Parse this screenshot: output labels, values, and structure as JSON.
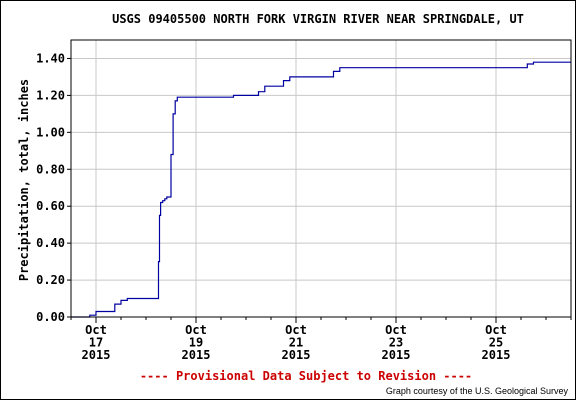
{
  "chart_data": {
    "type": "line",
    "title": "USGS 09405500 NORTH FORK VIRGIN RIVER NEAR SPRINGDALE, UT",
    "ylabel": "Precipitation, total, inches",
    "xlabel": "",
    "ylim": [
      0.0,
      1.5
    ],
    "xlim": [
      "2015-10-16 12:00",
      "2015-10-26 12:00"
    ],
    "yticks": [
      "0.00",
      "0.20",
      "0.40",
      "0.60",
      "0.80",
      "1.00",
      "1.20",
      "1.40"
    ],
    "xticks": [
      {
        "month": "Oct",
        "day": "17",
        "year": "2015",
        "date": "2015-10-17"
      },
      {
        "month": "Oct",
        "day": "19",
        "year": "2015",
        "date": "2015-10-19"
      },
      {
        "month": "Oct",
        "day": "21",
        "year": "2015",
        "date": "2015-10-21"
      },
      {
        "month": "Oct",
        "day": "23",
        "year": "2015",
        "date": "2015-10-23"
      },
      {
        "month": "Oct",
        "day": "25",
        "year": "2015",
        "date": "2015-10-25"
      }
    ],
    "grid": true,
    "series": [
      {
        "color": "#0000a0",
        "step": true,
        "points": [
          [
            "2015-10-16 12:00",
            0.0
          ],
          [
            "2015-10-16 21:00",
            0.01
          ],
          [
            "2015-10-17 00:00",
            0.03
          ],
          [
            "2015-10-17 09:00",
            0.07
          ],
          [
            "2015-10-17 12:00",
            0.09
          ],
          [
            "2015-10-17 15:00",
            0.1
          ],
          [
            "2015-10-18 06:00",
            0.3
          ],
          [
            "2015-10-18 06:30",
            0.55
          ],
          [
            "2015-10-18 07:00",
            0.62
          ],
          [
            "2015-10-18 08:00",
            0.63
          ],
          [
            "2015-10-18 09:00",
            0.64
          ],
          [
            "2015-10-18 10:00",
            0.65
          ],
          [
            "2015-10-18 12:00",
            0.88
          ],
          [
            "2015-10-18 13:00",
            1.1
          ],
          [
            "2015-10-18 14:00",
            1.17
          ],
          [
            "2015-10-18 15:00",
            1.19
          ],
          [
            "2015-10-19 18:00",
            1.2
          ],
          [
            "2015-10-20 06:00",
            1.22
          ],
          [
            "2015-10-20 09:00",
            1.25
          ],
          [
            "2015-10-20 18:00",
            1.28
          ],
          [
            "2015-10-20 21:00",
            1.3
          ],
          [
            "2015-10-21 18:00",
            1.33
          ],
          [
            "2015-10-21 21:00",
            1.35
          ],
          [
            "2015-10-25 15:00",
            1.37
          ],
          [
            "2015-10-25 18:00",
            1.38
          ],
          [
            "2015-10-26 12:00",
            1.38
          ]
        ]
      }
    ]
  },
  "footer": {
    "provisional": "---- Provisional Data Subject to Revision ----",
    "credit": "Graph courtesy of the U.S. Geological Survey"
  },
  "colors": {
    "line": "#0000a0",
    "provisional": "#cc0000",
    "grid": "#c8c8c8"
  }
}
